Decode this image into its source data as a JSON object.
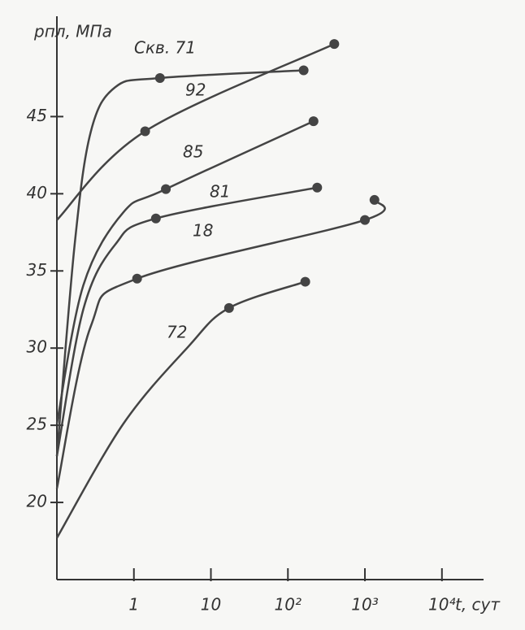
{
  "chart_data": {
    "type": "line",
    "y_label": "pпл, МПа",
    "x_label": "t, сут",
    "log_x": true,
    "xlim": [
      0.1,
      30000
    ],
    "ylim": [
      15,
      51.5
    ],
    "xticks": [
      1,
      10,
      {
        "value": 100,
        "label": "10²"
      },
      {
        "value": 1000,
        "label": "10³"
      },
      {
        "value": 10000,
        "label": "10⁴"
      }
    ],
    "yticks": [
      20,
      25,
      30,
      35,
      40,
      45
    ],
    "series": [
      {
        "name": "Скв. 71",
        "color": "#444",
        "x": [
          0.1,
          0.17,
          0.275,
          0.57,
          2.18,
          160
        ],
        "values": [
          23,
          36.7,
          44,
          46.9,
          47.5,
          48
        ],
        "points": {
          "x": [
            2.18,
            160
          ],
          "values": [
            47.5,
            48
          ]
        }
      },
      {
        "name": "92",
        "color": "#444",
        "x": [
          0.1,
          1.4,
          400
        ],
        "values": [
          38.3,
          44.05,
          49.7
        ],
        "points": {
          "x": [
            1.4,
            400
          ],
          "values": [
            44.05,
            49.7
          ]
        }
      },
      {
        "name": "85",
        "color": "#444",
        "x": [
          0.1,
          0.22,
          0.73,
          2.6,
          215
        ],
        "values": [
          25.1,
          34.05,
          38.8,
          40.3,
          44.7
        ],
        "points": {
          "x": [
            2.6,
            215
          ],
          "values": [
            40.3,
            44.7
          ]
        }
      },
      {
        "name": "81",
        "color": "#444",
        "x": [
          0.1,
          0.22,
          0.57,
          1.93,
          240
        ],
        "values": [
          23,
          32.5,
          36.7,
          38.4,
          40.4
        ],
        "points": {
          "x": [
            1.93,
            240
          ],
          "values": [
            38.4,
            40.4
          ]
        }
      },
      {
        "name": "18",
        "color": "#444",
        "x": [
          0.1,
          0.275,
          1.1,
          1000,
          1330
        ],
        "values": [
          20.9,
          31.4,
          34.5,
          38.3,
          39.6
        ],
        "points": {
          "x": [
            1.1,
            1000,
            1330
          ],
          "values": [
            34.5,
            38.3,
            39.6
          ]
        }
      },
      {
        "name": "72",
        "color": "#444",
        "x": [
          0.1,
          0.73,
          5.1,
          17.2,
          168
        ],
        "values": [
          17.7,
          25.1,
          30.1,
          32.6,
          34.3
        ],
        "points": {
          "x": [
            17.2,
            168
          ],
          "values": [
            32.6,
            34.3
          ]
        }
      }
    ]
  }
}
